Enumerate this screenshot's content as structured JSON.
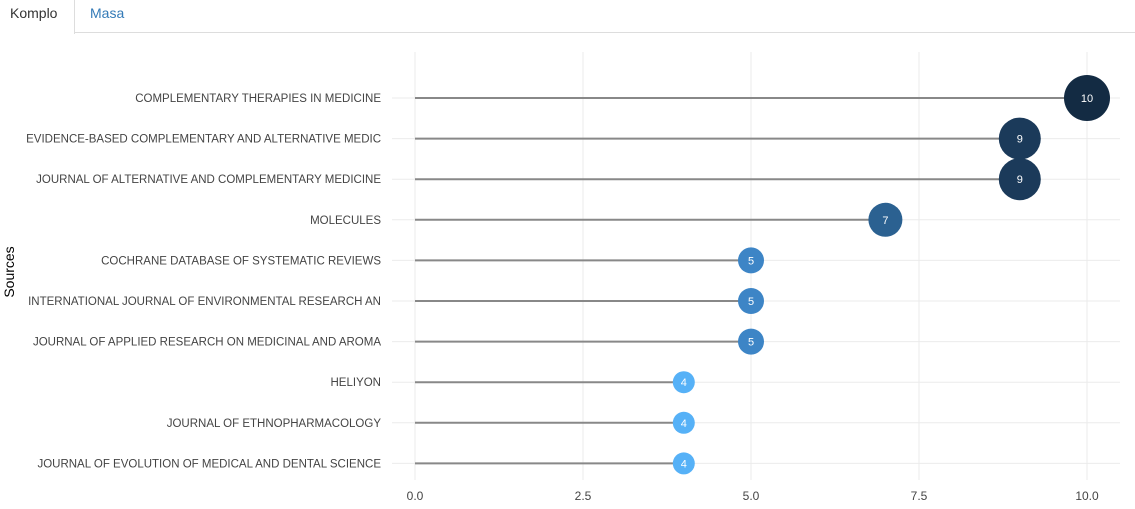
{
  "tabs": [
    {
      "label": "Komplo"
    },
    {
      "label": "Masa"
    }
  ],
  "chart_data": {
    "type": "lollipop",
    "title": "",
    "xlabel": "",
    "ylabel": "Sources",
    "xlim": [
      0,
      10.4
    ],
    "x_ticks": [
      "0.0",
      "2.5",
      "5.0",
      "7.5",
      "10.0"
    ],
    "x_tick_values": [
      0,
      2.5,
      5,
      7.5,
      10
    ],
    "grid": true,
    "categories": [
      "COMPLEMENTARY THERAPIES IN MEDICINE",
      "EVIDENCE-BASED COMPLEMENTARY AND ALTERNATIVE MEDIC",
      "JOURNAL OF ALTERNATIVE AND COMPLEMENTARY MEDICINE",
      "MOLECULES",
      "COCHRANE DATABASE OF SYSTEMATIC REVIEWS",
      "INTERNATIONAL JOURNAL OF ENVIRONMENTAL RESEARCH AN",
      "JOURNAL OF APPLIED RESEARCH ON MEDICINAL AND AROMA",
      "HELIYON",
      "JOURNAL OF ETHNOPHARMACOLOGY",
      "JOURNAL OF EVOLUTION OF MEDICAL AND DENTAL SCIENCE"
    ],
    "values": [
      10,
      9,
      9,
      7,
      5,
      5,
      5,
      4,
      4,
      4
    ],
    "colors": [
      "#132B43",
      "#1B3A5A",
      "#1B3A5A",
      "#2B6191",
      "#3D85C6",
      "#3D85C6",
      "#3D85C6",
      "#56B1F7",
      "#56B1F7",
      "#56B1F7"
    ],
    "stem_color": "#888888"
  }
}
